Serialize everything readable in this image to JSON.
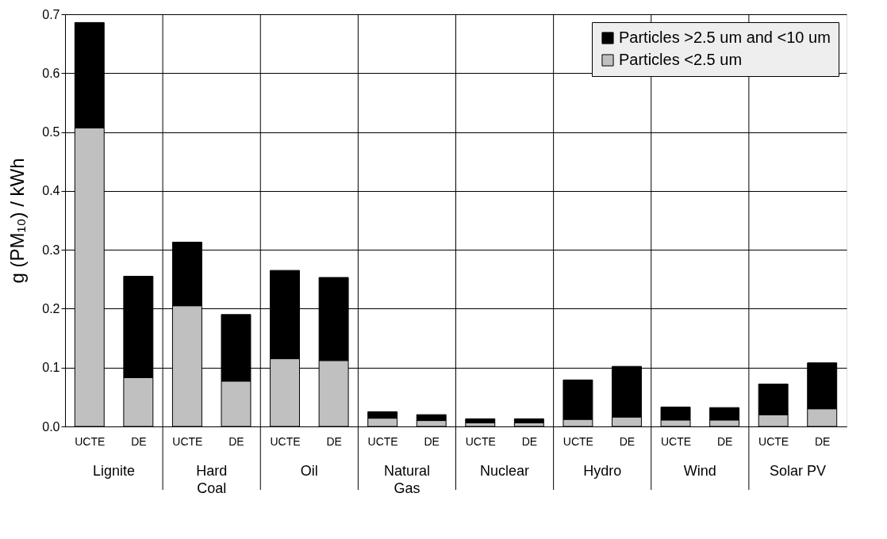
{
  "chart_data": {
    "type": "bar",
    "stacked": true,
    "ylabel": "g (PM₁₀) / kWh",
    "categories": [
      "UCTE",
      "DE",
      "UCTE",
      "DE",
      "UCTE",
      "DE",
      "UCTE",
      "DE",
      "UCTE",
      "DE",
      "UCTE",
      "DE",
      "UCTE",
      "DE",
      "UCTE",
      "DE"
    ],
    "annotations": [
      "Lignite",
      "Hard Coal",
      "Oil",
      "Natural Gas",
      "Nuclear",
      "Hydro",
      "Wind",
      "Solar PV"
    ],
    "series": [
      {
        "name": "Particles <2.5 um",
        "color": "#c0c0c0",
        "values": [
          0.507,
          0.083,
          0.205,
          0.077,
          0.115,
          0.112,
          0.014,
          0.01,
          0.006,
          0.006,
          0.012,
          0.016,
          0.011,
          0.011,
          0.02,
          0.03
        ]
      },
      {
        "name": "Particles >2.5 um and <10 um",
        "color": "#000000",
        "values": [
          0.179,
          0.172,
          0.108,
          0.113,
          0.15,
          0.141,
          0.011,
          0.01,
          0.007,
          0.007,
          0.067,
          0.086,
          0.022,
          0.021,
          0.052,
          0.078
        ]
      }
    ],
    "ylim": [
      0,
      0.7
    ],
    "yticks": [
      {
        "value": 0,
        "label": "0.0"
      },
      0.1,
      0.2,
      0.3,
      0.4,
      0.5,
      0.6,
      0.7
    ],
    "grid": "y",
    "legend": "top right"
  }
}
